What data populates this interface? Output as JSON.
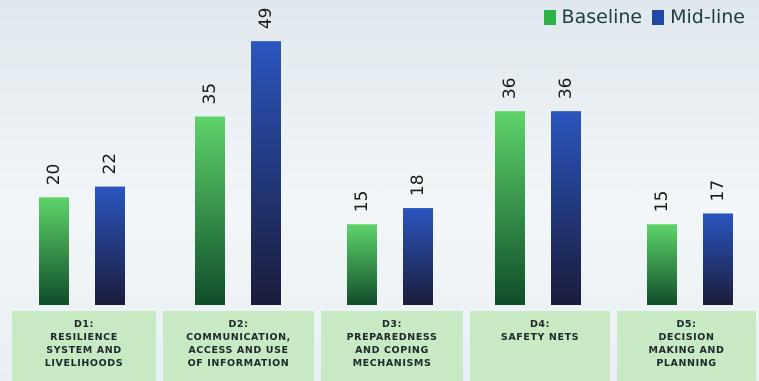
{
  "legend": {
    "baseline": "Baseline",
    "midline": "Mid-line"
  },
  "colors": {
    "baseline_top": "#5ed46a",
    "baseline_bottom": "#0f4d2a",
    "midline_top": "#2a55bf",
    "midline_bottom": "#1b1c3a",
    "category_bg": "#c7e9c4"
  },
  "chart_data": {
    "type": "bar",
    "categories": [
      "D1:\nRESILIENCE\nSYSTEM AND\nLIVELIHOODS",
      "D2:\nCOMMUNICATION,\nACCESS AND USE\nOF INFORMATION",
      "D3:\nPREPAREDNESS\nAND COPING\nMECHANISMS",
      "D4:\nSAFETY NETS",
      "D5:\nDECISION\nMAKING AND\nPLANNING"
    ],
    "series": [
      {
        "name": "Baseline",
        "values": [
          20,
          35,
          15,
          36,
          15
        ]
      },
      {
        "name": "Mid-line",
        "values": [
          22,
          49,
          18,
          36,
          17
        ]
      }
    ],
    "ylim": [
      0,
      52
    ],
    "legend_position": "top-right",
    "grid": false
  }
}
